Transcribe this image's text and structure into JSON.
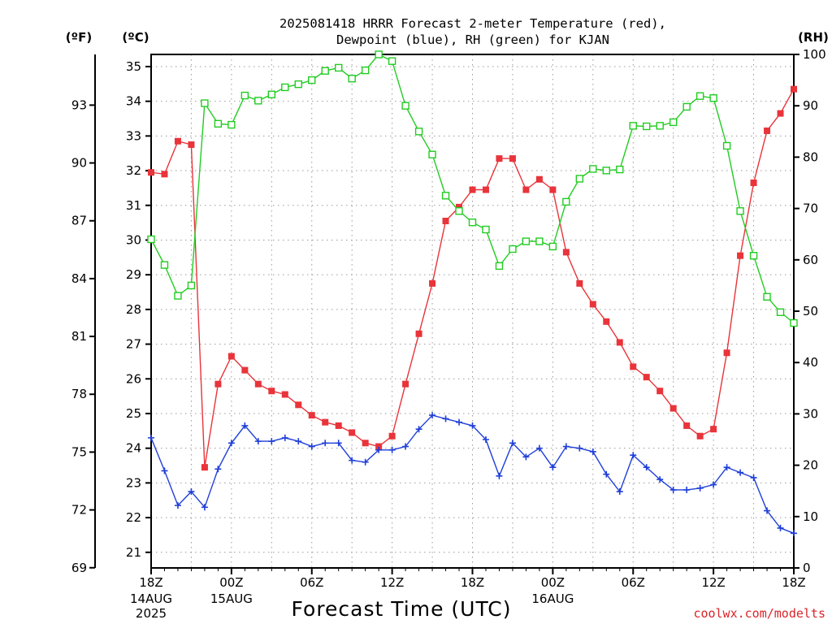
{
  "chart_data": {
    "type": "line",
    "title_lines": [
      "2025081418 HRRR Forecast 2-meter Temperature (red),",
      "Dewpoint (blue), RH (green) for KJAN"
    ],
    "xlabel": "Forecast Time (UTC)",
    "credit": "coolwx.com/modelts",
    "left_unit_f": "(ºF)",
    "left_unit_c": "(ºC)",
    "right_unit": "(RH)",
    "x_ticks": [
      {
        "hour": 0,
        "label": "18Z",
        "sub": [
          "14AUG",
          "2025"
        ]
      },
      {
        "hour": 6,
        "label": "00Z",
        "sub": [
          "15AUG"
        ]
      },
      {
        "hour": 12,
        "label": "06Z",
        "sub": []
      },
      {
        "hour": 18,
        "label": "12Z",
        "sub": []
      },
      {
        "hour": 24,
        "label": "18Z",
        "sub": []
      },
      {
        "hour": 30,
        "label": "00Z",
        "sub": [
          "16AUG"
        ]
      },
      {
        "hour": 36,
        "label": "06Z",
        "sub": []
      },
      {
        "hour": 42,
        "label": "12Z",
        "sub": []
      },
      {
        "hour": 48,
        "label": "18Z",
        "sub": []
      }
    ],
    "celsius_ticks": [
      21,
      22,
      23,
      24,
      25,
      26,
      27,
      28,
      29,
      30,
      31,
      32,
      33,
      34,
      35
    ],
    "fahrenheit_ticks": [
      69,
      72,
      75,
      78,
      81,
      84,
      87,
      90,
      93
    ],
    "rh_ticks": [
      0,
      10,
      20,
      30,
      40,
      50,
      60,
      70,
      80,
      90,
      100
    ],
    "xlim": [
      0,
      48
    ],
    "ylim_celsius": [
      20.55,
      35.35
    ],
    "ylim_rh": [
      0,
      100
    ],
    "grid": true,
    "series": [
      {
        "name": "Temperature",
        "unit": "C",
        "color": "#e8343a",
        "marker": "filled-square",
        "values": [
          31.95,
          31.9,
          32.85,
          32.75,
          23.45,
          25.85,
          26.65,
          26.25,
          25.85,
          25.65,
          25.55,
          25.25,
          24.95,
          24.75,
          24.65,
          24.45,
          24.15,
          24.05,
          24.35,
          25.85,
          27.3,
          28.75,
          30.55,
          30.95,
          31.45,
          31.45,
          32.35,
          32.35,
          31.45,
          31.75,
          31.45,
          29.65,
          28.75,
          28.15,
          27.65,
          27.05,
          26.35,
          26.05,
          25.65,
          25.15,
          24.65,
          24.35,
          24.55,
          26.75,
          29.55,
          31.65,
          33.15,
          33.65,
          34.35
        ]
      },
      {
        "name": "Dewpoint",
        "unit": "C",
        "color": "#1f3fd8",
        "marker": "plus",
        "values": [
          24.3,
          23.35,
          22.35,
          22.75,
          22.3,
          23.4,
          24.15,
          24.65,
          24.2,
          24.2,
          24.3,
          24.2,
          24.05,
          24.15,
          24.15,
          23.65,
          23.6,
          23.95,
          23.95,
          24.05,
          24.55,
          24.95,
          24.85,
          24.75,
          24.65,
          24.25,
          23.2,
          24.15,
          23.75,
          24.0,
          23.45,
          24.05,
          24.0,
          23.9,
          23.25,
          22.75,
          23.8,
          23.45,
          23.1,
          22.8,
          22.8,
          22.85,
          22.95,
          23.45,
          23.3,
          23.15,
          22.2,
          21.7,
          21.55
        ]
      },
      {
        "name": "RH",
        "unit": "%",
        "color": "#22cc22",
        "marker": "open-square",
        "values": [
          64,
          59,
          53,
          55,
          90.5,
          86.5,
          86.3,
          92,
          91,
          92.2,
          93.6,
          94.2,
          95,
          96.8,
          97.4,
          95.3,
          96.9,
          100,
          98.7,
          90,
          85,
          80.5,
          72.5,
          69.5,
          67.3,
          65.9,
          58.8,
          62.1,
          63.6,
          63.6,
          62.6,
          71.3,
          75.8,
          77.7,
          77.4,
          77.6,
          86.1,
          86,
          86.1,
          86.8,
          89.8,
          91.9,
          91.5,
          82.2,
          69.5,
          60.8,
          52.8,
          49.8,
          47.7
        ]
      }
    ]
  }
}
